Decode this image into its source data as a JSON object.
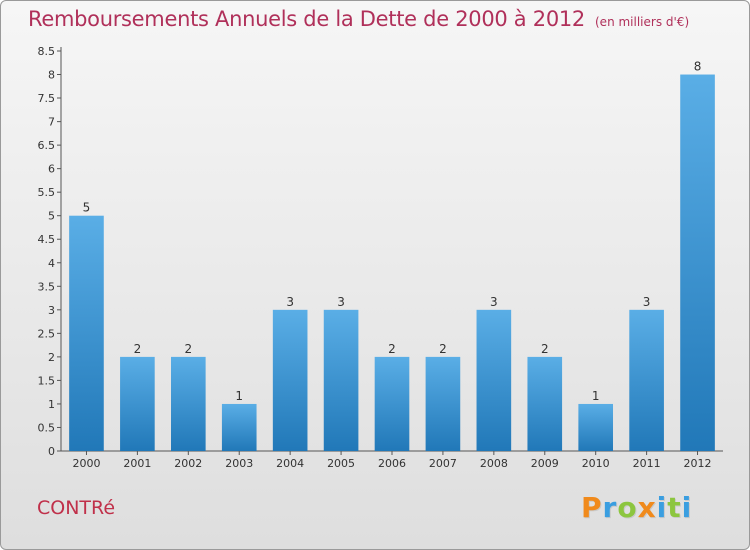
{
  "title": "Remboursements Annuels de la Dette de 2000 à 2012",
  "subtitle": "(en milliers d'€)",
  "place": "CONTRé",
  "logo": {
    "text": "Proxiti",
    "letters": [
      {
        "char": "P",
        "color": "#f08a1c"
      },
      {
        "char": "r",
        "color": "#3a9ee0"
      },
      {
        "char": "o",
        "color": "#8cc63f"
      },
      {
        "char": "x",
        "color": "#f08a1c"
      },
      {
        "char": "i",
        "color": "#3a9ee0"
      },
      {
        "char": "t",
        "color": "#8cc63f"
      },
      {
        "char": "i",
        "color": "#3a9ee0"
      }
    ]
  },
  "colors": {
    "title": "#b0305a",
    "bar_top": "#5aaee6",
    "bar_bottom": "#2178b8"
  },
  "chart_data": {
    "type": "bar",
    "categories": [
      "2000",
      "2001",
      "2002",
      "2003",
      "2004",
      "2005",
      "2006",
      "2007",
      "2008",
      "2009",
      "2010",
      "2011",
      "2012"
    ],
    "values": [
      5,
      2,
      2,
      1,
      3,
      3,
      2,
      2,
      3,
      2,
      1,
      3,
      8
    ],
    "value_labels": [
      "5",
      "2",
      "2",
      "1",
      "3",
      "3",
      "2",
      "2",
      "3",
      "2",
      "1",
      "3",
      "8"
    ],
    "ylim": [
      0,
      8.5
    ],
    "yticks": [
      "0",
      "0.5",
      "1",
      "1.5",
      "2",
      "2.5",
      "3",
      "3.5",
      "4",
      "4.5",
      "5",
      "5.5",
      "6",
      "6.5",
      "7",
      "7.5",
      "8",
      "8.5"
    ],
    "xlabel": "",
    "ylabel": "",
    "grid": false,
    "legend": "none"
  }
}
